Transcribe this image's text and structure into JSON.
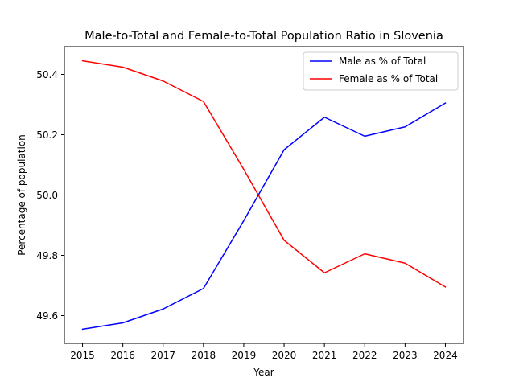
{
  "chart_data": {
    "type": "line",
    "title": "Male-to-Total and Female-to-Total Population Ratio in Slovenia",
    "xlabel": "Year",
    "ylabel": "Percentage of population",
    "x": [
      2015,
      2016,
      2017,
      2018,
      2019,
      2020,
      2021,
      2022,
      2023,
      2024
    ],
    "x_ticks": [
      "2015",
      "2016",
      "2017",
      "2018",
      "2019",
      "2020",
      "2021",
      "2022",
      "2023",
      "2024"
    ],
    "y_ticks": [
      "49.6",
      "49.8",
      "50.0",
      "50.2",
      "50.4"
    ],
    "y_tick_values": [
      49.6,
      49.8,
      50.0,
      50.2,
      50.4
    ],
    "xlim": [
      2014.55,
      2024.45
    ],
    "ylim": [
      49.508,
      50.492
    ],
    "grid": false,
    "legend_position": "top-right",
    "series": [
      {
        "name": "Male as % of Total",
        "color": "#0000ff",
        "values": [
          49.555,
          49.576,
          49.622,
          49.69,
          49.915,
          50.15,
          50.258,
          50.195,
          50.226,
          50.305
        ]
      },
      {
        "name": "Female as % of Total",
        "color": "#ff0000",
        "values": [
          50.445,
          50.424,
          50.378,
          50.31,
          50.085,
          49.85,
          49.742,
          49.805,
          49.774,
          49.695
        ]
      }
    ]
  }
}
